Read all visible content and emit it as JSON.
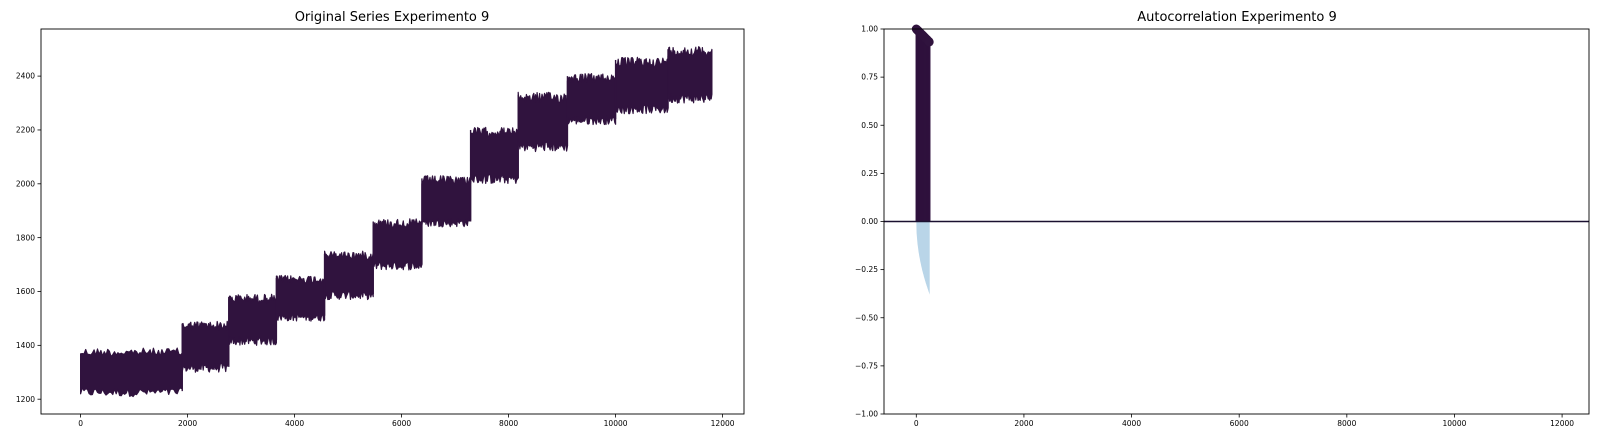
{
  "chart_data": [
    {
      "type": "line",
      "title": "Original Series Experimento 9",
      "xlabel": "",
      "ylabel": "",
      "xlim": [
        -740,
        12400
      ],
      "ylim": [
        1145,
        2575
      ],
      "xticks": [
        0,
        2000,
        4000,
        6000,
        8000,
        10000,
        12000
      ],
      "xtick_labels": [
        "0",
        "2000",
        "4000",
        "6000",
        "8000",
        "10000",
        "12000"
      ],
      "yticks": [
        1200,
        1400,
        1600,
        1800,
        2000,
        2200,
        2400
      ],
      "ytick_labels": [
        "1200",
        "1400",
        "1600",
        "1800",
        "2000",
        "2200",
        "2400"
      ],
      "grid": false,
      "series_color": "#30133e",
      "segments": [
        {
          "x_start": 0,
          "x_end": 1900,
          "low": 1210,
          "high": 1390
        },
        {
          "x_start": 1900,
          "x_end": 2770,
          "low": 1300,
          "high": 1490
        },
        {
          "x_start": 2770,
          "x_end": 3660,
          "low": 1400,
          "high": 1590
        },
        {
          "x_start": 3660,
          "x_end": 4560,
          "low": 1490,
          "high": 1660
        },
        {
          "x_start": 4560,
          "x_end": 5470,
          "low": 1570,
          "high": 1750
        },
        {
          "x_start": 5470,
          "x_end": 6380,
          "low": 1680,
          "high": 1870
        },
        {
          "x_start": 6380,
          "x_end": 7290,
          "low": 1840,
          "high": 2030
        },
        {
          "x_start": 7290,
          "x_end": 8180,
          "low": 2000,
          "high": 2210
        },
        {
          "x_start": 8180,
          "x_end": 9100,
          "low": 2120,
          "high": 2340
        },
        {
          "x_start": 9100,
          "x_end": 10000,
          "low": 2220,
          "high": 2410
        },
        {
          "x_start": 10000,
          "x_end": 10980,
          "low": 2260,
          "high": 2470
        },
        {
          "x_start": 10980,
          "x_end": 11800,
          "low": 2300,
          "high": 2510
        }
      ]
    },
    {
      "type": "bar",
      "title": "Autocorrelation Experimento 9",
      "xlabel": "",
      "ylabel": "",
      "xlim": [
        -600,
        12500
      ],
      "ylim": [
        -1.0,
        1.0
      ],
      "xticks": [
        0,
        2000,
        4000,
        6000,
        8000,
        10000,
        12000
      ],
      "xtick_labels": [
        "0",
        "2000",
        "4000",
        "6000",
        "8000",
        "10000",
        "12000"
      ],
      "yticks": [
        -1.0,
        -0.75,
        -0.5,
        -0.25,
        0.0,
        0.25,
        0.5,
        0.75,
        1.0
      ],
      "ytick_labels": [
        "−1.00",
        "−0.75",
        "−0.50",
        "−0.25",
        "0.00",
        "0.25",
        "0.50",
        "0.75",
        "1.00"
      ],
      "grid": false,
      "bar_color": "#30133e",
      "confidence_color": "#b9d5e8",
      "lags_max": 250,
      "acf": {
        "lag_start": 0,
        "lag_end": 250,
        "value_start": 1.0,
        "value_end": 0.93
      },
      "confidence_band": {
        "lag_start": 0,
        "lag_end": 250,
        "lower_start": 0.0,
        "lower_end": -0.38
      }
    }
  ]
}
